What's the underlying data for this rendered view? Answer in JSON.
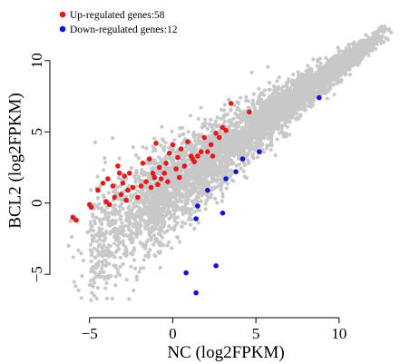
{
  "chart_data": {
    "type": "scatter",
    "title": "",
    "xlabel": "NC (log2FPKM)",
    "ylabel": "BCL2 (log2FPKM)",
    "xlim": [
      -7,
      13.5
    ],
    "ylim": [
      -7.6,
      14
    ],
    "x_ticks": [
      -5,
      0,
      5,
      10
    ],
    "y_ticks": [
      -5,
      0,
      5,
      10
    ],
    "x_tick_labels": [
      "−5",
      "0",
      "5",
      "10"
    ],
    "y_tick_labels": [
      "−5",
      "0",
      "5",
      "10"
    ],
    "grid": false,
    "legend_position": "top-left",
    "colors": {
      "up": "#e31a1c",
      "down": "#1414d2",
      "background": "#c8c8c8"
    },
    "series": [
      {
        "name": "Up-regulated genes:58",
        "count": 58,
        "color": "#e31a1c",
        "points": [
          [
            -5.8,
            -1.2
          ],
          [
            -5.0,
            -0.1
          ],
          [
            -4.9,
            -0.3
          ],
          [
            -4.5,
            0.9
          ],
          [
            -4.2,
            1.4
          ],
          [
            -4.0,
            0.1
          ],
          [
            -3.9,
            1.7
          ],
          [
            -3.8,
            -0.1
          ],
          [
            -3.6,
            1.2
          ],
          [
            -3.5,
            0.4
          ],
          [
            -3.3,
            2.6
          ],
          [
            -3.2,
            2.1
          ],
          [
            -3.1,
            0.6
          ],
          [
            -3.0,
            1.4
          ],
          [
            -2.9,
            1.9
          ],
          [
            -2.8,
            0.2
          ],
          [
            -2.7,
            0.9
          ],
          [
            -2.6,
            2.1
          ],
          [
            -2.4,
            1.1
          ],
          [
            -2.1,
            0.4
          ],
          [
            -1.9,
            1.2
          ],
          [
            -1.8,
            2.8
          ],
          [
            -1.6,
            1.5
          ],
          [
            -1.4,
            3.1
          ],
          [
            -1.3,
            1.1
          ],
          [
            -1.2,
            2.1
          ],
          [
            -1.1,
            1.8
          ],
          [
            -1.0,
            4.2
          ],
          [
            -0.9,
            1.3
          ],
          [
            -0.8,
            2.5
          ],
          [
            -0.7,
            1.7
          ],
          [
            -0.5,
            2.1
          ],
          [
            -0.4,
            2.8
          ],
          [
            -0.3,
            1.5
          ],
          [
            -0.2,
            3.5
          ],
          [
            0.0,
            4.1
          ],
          [
            0.2,
            2.4
          ],
          [
            0.3,
            3.2
          ],
          [
            0.4,
            1.8
          ],
          [
            0.5,
            3.8
          ],
          [
            0.7,
            2.6
          ],
          [
            0.9,
            4.3
          ],
          [
            1.1,
            3.3
          ],
          [
            1.2,
            3.1
          ],
          [
            1.3,
            2.9
          ],
          [
            1.5,
            3.3
          ],
          [
            1.7,
            3.6
          ],
          [
            1.9,
            4.6
          ],
          [
            2.1,
            3.6
          ],
          [
            2.3,
            4.1
          ],
          [
            2.4,
            3.3
          ],
          [
            2.6,
            4.9
          ],
          [
            2.8,
            4.6
          ],
          [
            3.0,
            5.3
          ],
          [
            3.2,
            5.1
          ],
          [
            3.5,
            7.0
          ],
          [
            4.6,
            6.4
          ],
          [
            -6.0,
            -1.0
          ]
        ]
      },
      {
        "name": "Down-regulated genes:12",
        "count": 12,
        "color": "#1414d2",
        "points": [
          [
            0.8,
            -4.9
          ],
          [
            1.4,
            -6.3
          ],
          [
            1.4,
            -1.1
          ],
          [
            1.5,
            -0.2
          ],
          [
            2.1,
            0.9
          ],
          [
            2.6,
            -4.4
          ],
          [
            3.0,
            -0.7
          ],
          [
            3.2,
            1.7
          ],
          [
            3.8,
            2.2
          ],
          [
            4.2,
            3.1
          ],
          [
            8.8,
            7.4
          ],
          [
            5.2,
            3.6
          ]
        ]
      }
    ]
  }
}
